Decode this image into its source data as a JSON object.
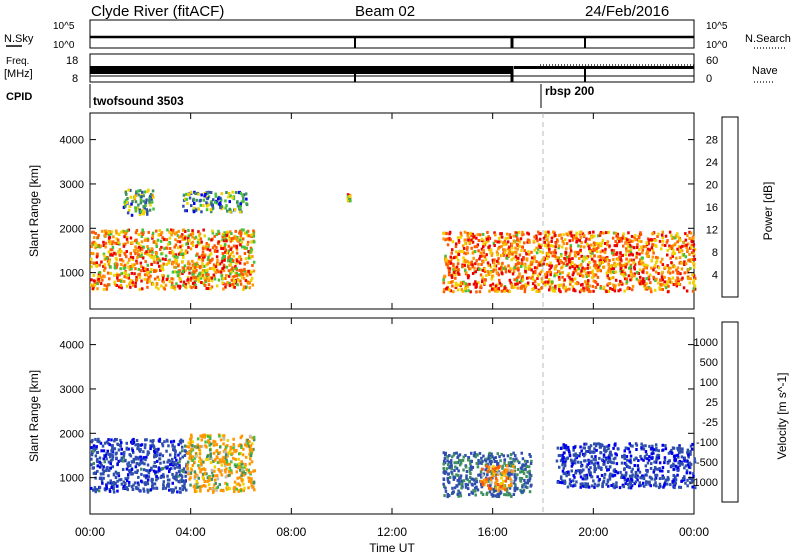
{
  "header": {
    "station": "Clyde River (fitACF)",
    "beam": "Beam 02",
    "date": "24/Feb/2016"
  },
  "status_panels": {
    "nsky_label": "N.Sky",
    "nsky_ticks": [
      "10^5",
      "10^0"
    ],
    "nsearch_label": "N.Search",
    "nsearch_ticks": [
      "10^5",
      "10^0"
    ],
    "freq_label": "Freq.",
    "freq_unit": "[MHz]",
    "freq_ticks": [
      "18",
      "8"
    ],
    "nave_label": "Nave",
    "nave_ticks": [
      "60",
      "0"
    ],
    "cpid_label": "CPID",
    "cpid_entries": [
      {
        "name": "twofsound 3503",
        "start": "00:00"
      },
      {
        "name": "rbsp 200",
        "start": "18:00"
      }
    ]
  },
  "chart_data": [
    {
      "type": "heatmap",
      "title": "Power",
      "ylabel": "Slant Range [km]",
      "xlabel": "",
      "colorbar_label": "Power [dB]",
      "colorbar_ticks": [
        "28",
        "24",
        "20",
        "16",
        "12",
        "8",
        "4"
      ],
      "colorbar_range": [
        0,
        32
      ],
      "colors": [
        "#0000ee",
        "#2f4fae",
        "#3f8f5f",
        "#44c03a",
        "#f0d400",
        "#ff9500",
        "#ff5a00",
        "#ee0000"
      ],
      "ylim": [
        180,
        4600
      ],
      "yticks": [
        "1000",
        "2000",
        "3000",
        "4000"
      ],
      "xlim_hours": [
        0,
        24
      ],
      "grid": false,
      "regions": [
        {
          "t_start_hours": 0.0,
          "t_end_hours": 6.5,
          "range_km": [
            650,
            2000
          ],
          "value": 22
        },
        {
          "t_start_hours": 1.3,
          "t_end_hours": 2.5,
          "range_km": [
            2300,
            2900
          ],
          "value": 12
        },
        {
          "t_start_hours": 3.6,
          "t_end_hours": 6.2,
          "range_km": [
            2400,
            2850
          ],
          "value": 10
        },
        {
          "t_start_hours": 14.0,
          "t_end_hours": 24.0,
          "range_km": [
            600,
            1950
          ],
          "value": 24
        },
        {
          "t_start_hours": 10.2,
          "t_end_hours": 10.3,
          "range_km": [
            2650,
            2800
          ],
          "value": 20
        }
      ]
    },
    {
      "type": "heatmap",
      "title": "Velocity",
      "ylabel": "Slant Range [km]",
      "xlabel": "Time UT",
      "colorbar_label": "Velocity [m s^-1]",
      "colorbar_ticks": [
        "1000",
        "500",
        "100",
        "25",
        "-25",
        "-100",
        "-500",
        "-1000"
      ],
      "colors": [
        "#0000ee",
        "#2f4fae",
        "#3f8f5f",
        "#44c03a",
        "#bdbdbd",
        "#f0d400",
        "#ff9500",
        "#ff5a00",
        "#ee0000"
      ],
      "ylim": [
        180,
        4600
      ],
      "yticks": [
        "1000",
        "2000",
        "3000",
        "4000"
      ],
      "xticks": [
        "00:00",
        "04:00",
        "08:00",
        "12:00",
        "16:00",
        "20:00",
        "00:00"
      ],
      "xlim_hours": [
        0,
        24
      ],
      "grid": false,
      "regions": [
        {
          "t_start_hours": 0.0,
          "t_end_hours": 3.8,
          "range_km": [
            700,
            1900
          ],
          "value": 800
        },
        {
          "t_start_hours": 3.8,
          "t_end_hours": 6.5,
          "range_km": [
            700,
            2000
          ],
          "value": -150
        },
        {
          "t_start_hours": 14.0,
          "t_end_hours": 17.5,
          "range_km": [
            600,
            1600
          ],
          "value": 600
        },
        {
          "t_start_hours": 15.5,
          "t_end_hours": 16.8,
          "range_km": [
            700,
            1300
          ],
          "value": -300
        },
        {
          "t_start_hours": 18.5,
          "t_end_hours": 24.0,
          "range_km": [
            800,
            1800
          ],
          "value": 900
        }
      ]
    }
  ],
  "overlays": {
    "rbsp_marker_hours": 18.0
  }
}
